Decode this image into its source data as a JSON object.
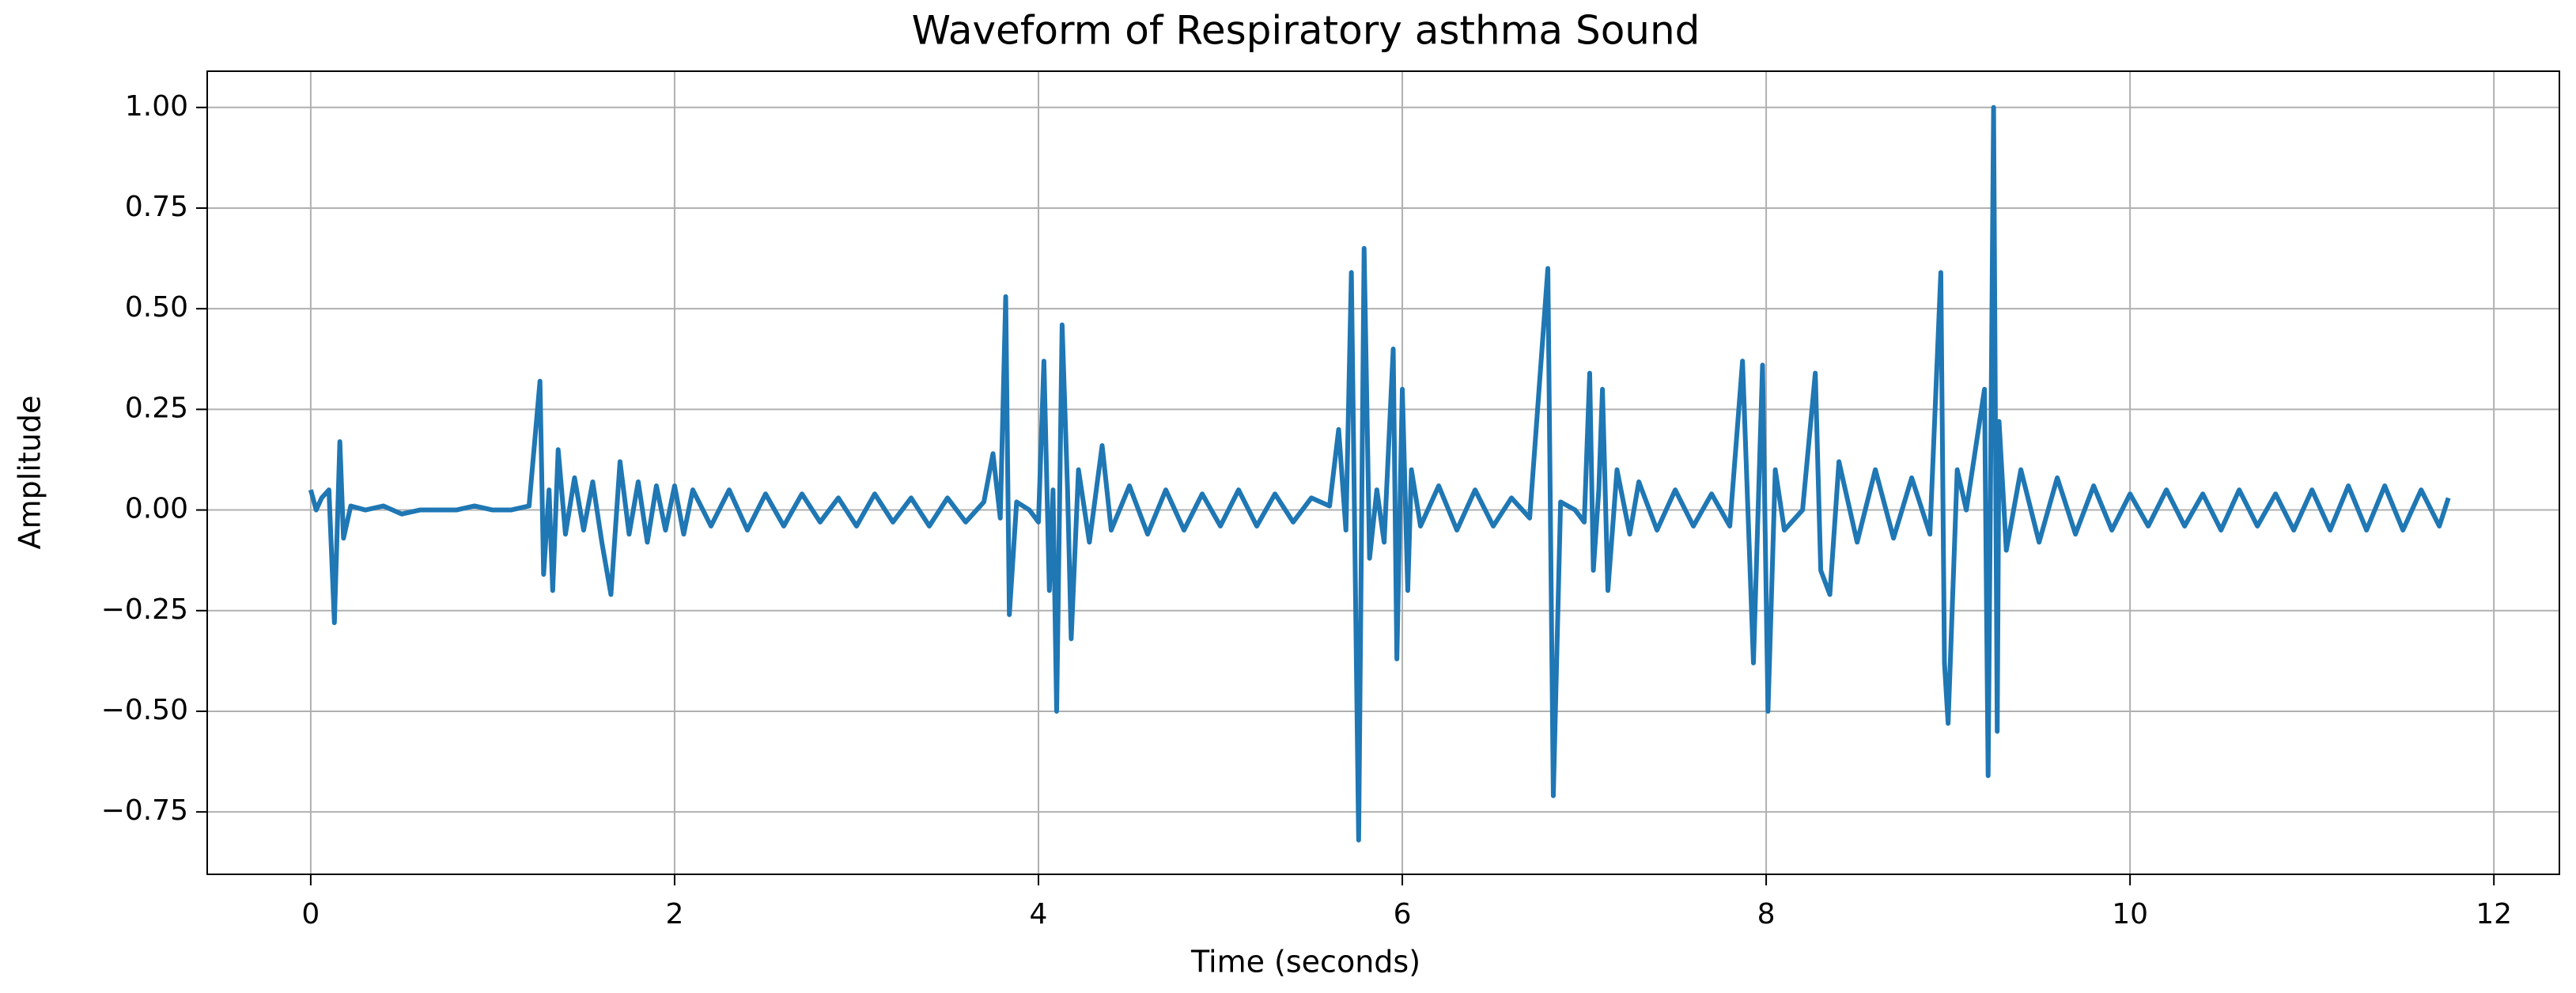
{
  "chart_data": {
    "type": "line",
    "title": "Waveform of Respiratory asthma Sound",
    "x_label": "Time (seconds)",
    "y_label": "Amplitude",
    "color": "#1f77b4",
    "grid": true,
    "xlim": [
      -0.569,
      12.36
    ],
    "ylim": [
      -0.905,
      1.09
    ],
    "xticks": [
      0,
      2,
      4,
      6,
      8,
      10,
      12
    ],
    "yticks": [
      {
        "value": -0.75,
        "label": "−0.75"
      },
      {
        "value": -0.5,
        "label": "−0.50"
      },
      {
        "value": -0.25,
        "label": "−0.25"
      },
      {
        "value": 0,
        "label": "0.00"
      },
      {
        "value": 0.25,
        "label": "0.25"
      },
      {
        "value": 0.5,
        "label": "0.50"
      },
      {
        "value": 0.75,
        "label": "0.75"
      },
      {
        "value": 1,
        "label": "1.00"
      }
    ],
    "x": [
      0,
      0.03,
      0.06,
      0.1,
      0.13,
      0.16,
      0.18,
      0.22,
      0.3,
      0.4,
      0.5,
      0.6,
      0.7,
      0.8,
      0.9,
      1.0,
      1.1,
      1.2,
      1.26,
      1.28,
      1.31,
      1.33,
      1.36,
      1.4,
      1.45,
      1.5,
      1.55,
      1.6,
      1.65,
      1.7,
      1.75,
      1.8,
      1.85,
      1.9,
      1.95,
      2.0,
      2.05,
      2.1,
      2.2,
      2.3,
      2.4,
      2.5,
      2.6,
      2.7,
      2.8,
      2.9,
      3.0,
      3.1,
      3.2,
      3.3,
      3.4,
      3.5,
      3.6,
      3.7,
      3.75,
      3.79,
      3.82,
      3.84,
      3.88,
      3.95,
      4.0,
      4.03,
      4.06,
      4.08,
      4.1,
      4.13,
      4.16,
      4.18,
      4.22,
      4.28,
      4.35,
      4.4,
      4.5,
      4.6,
      4.7,
      4.8,
      4.9,
      5.0,
      5.1,
      5.2,
      5.3,
      5.4,
      5.5,
      5.6,
      5.65,
      5.69,
      5.72,
      5.76,
      5.79,
      5.82,
      5.86,
      5.9,
      5.95,
      5.97,
      6.0,
      6.03,
      6.05,
      6.1,
      6.2,
      6.3,
      6.4,
      6.5,
      6.6,
      6.7,
      6.8,
      6.83,
      6.87,
      6.95,
      7.0,
      7.03,
      7.05,
      7.08,
      7.1,
      7.13,
      7.18,
      7.25,
      7.3,
      7.4,
      7.5,
      7.6,
      7.7,
      7.8,
      7.87,
      7.93,
      7.98,
      8.01,
      8.05,
      8.1,
      8.2,
      8.27,
      8.3,
      8.35,
      8.4,
      8.5,
      8.6,
      8.7,
      8.8,
      8.9,
      8.96,
      8.98,
      9.0,
      9.05,
      9.1,
      9.2,
      9.22,
      9.25,
      9.27,
      9.28,
      9.32,
      9.4,
      9.5,
      9.6,
      9.7,
      9.8,
      9.9,
      10.0,
      10.1,
      10.2,
      10.3,
      10.4,
      10.5,
      10.6,
      10.7,
      10.8,
      10.9,
      11.0,
      11.1,
      11.2,
      11.3,
      11.4,
      11.5,
      11.6,
      11.7,
      11.75
    ],
    "values": [
      0.05,
      0,
      0.03,
      0.05,
      -0.28,
      0.17,
      -0.07,
      0.01,
      0,
      0.01,
      -0.01,
      0,
      0,
      0,
      0.01,
      0,
      0,
      0.01,
      0.32,
      -0.16,
      0.05,
      -0.2,
      0.15,
      -0.06,
      0.08,
      -0.05,
      0.07,
      -0.08,
      -0.21,
      0.12,
      -0.06,
      0.07,
      -0.08,
      0.06,
      -0.05,
      0.06,
      -0.06,
      0.05,
      -0.04,
      0.05,
      -0.05,
      0.04,
      -0.04,
      0.04,
      -0.03,
      0.03,
      -0.04,
      0.04,
      -0.03,
      0.03,
      -0.04,
      0.03,
      -0.03,
      0.02,
      0.14,
      -0.02,
      0.53,
      -0.26,
      0.02,
      0,
      -0.03,
      0.37,
      -0.2,
      0.05,
      -0.5,
      0.46,
      0.05,
      -0.32,
      0.1,
      -0.08,
      0.16,
      -0.05,
      0.06,
      -0.06,
      0.05,
      -0.05,
      0.04,
      -0.04,
      0.05,
      -0.04,
      0.04,
      -0.03,
      0.03,
      0.01,
      0.2,
      -0.05,
      0.59,
      -0.82,
      0.65,
      -0.12,
      0.05,
      -0.08,
      0.4,
      -0.37,
      0.3,
      -0.2,
      0.1,
      -0.04,
      0.06,
      -0.05,
      0.05,
      -0.04,
      0.03,
      -0.02,
      0.6,
      -0.71,
      0.02,
      0,
      -0.03,
      0.34,
      -0.15,
      0.05,
      0.3,
      -0.2,
      0.1,
      -0.06,
      0.07,
      -0.05,
      0.05,
      -0.04,
      0.04,
      -0.04,
      0.37,
      -0.38,
      0.36,
      -0.5,
      0.1,
      -0.05,
      0,
      0.34,
      -0.15,
      -0.21,
      0.12,
      -0.08,
      0.1,
      -0.07,
      0.08,
      -0.06,
      0.59,
      -0.38,
      -0.53,
      0.1,
      0,
      0.3,
      -0.66,
      1.0,
      -0.55,
      0.22,
      -0.1,
      0.1,
      -0.08,
      0.08,
      -0.06,
      0.06,
      -0.05,
      0.04,
      -0.04,
      0.05,
      -0.04,
      0.04,
      -0.05,
      0.05,
      -0.04,
      0.04,
      -0.05,
      0.05,
      -0.05,
      0.06,
      -0.05,
      0.06,
      -0.05,
      0.05,
      -0.04,
      0.03
    ]
  }
}
